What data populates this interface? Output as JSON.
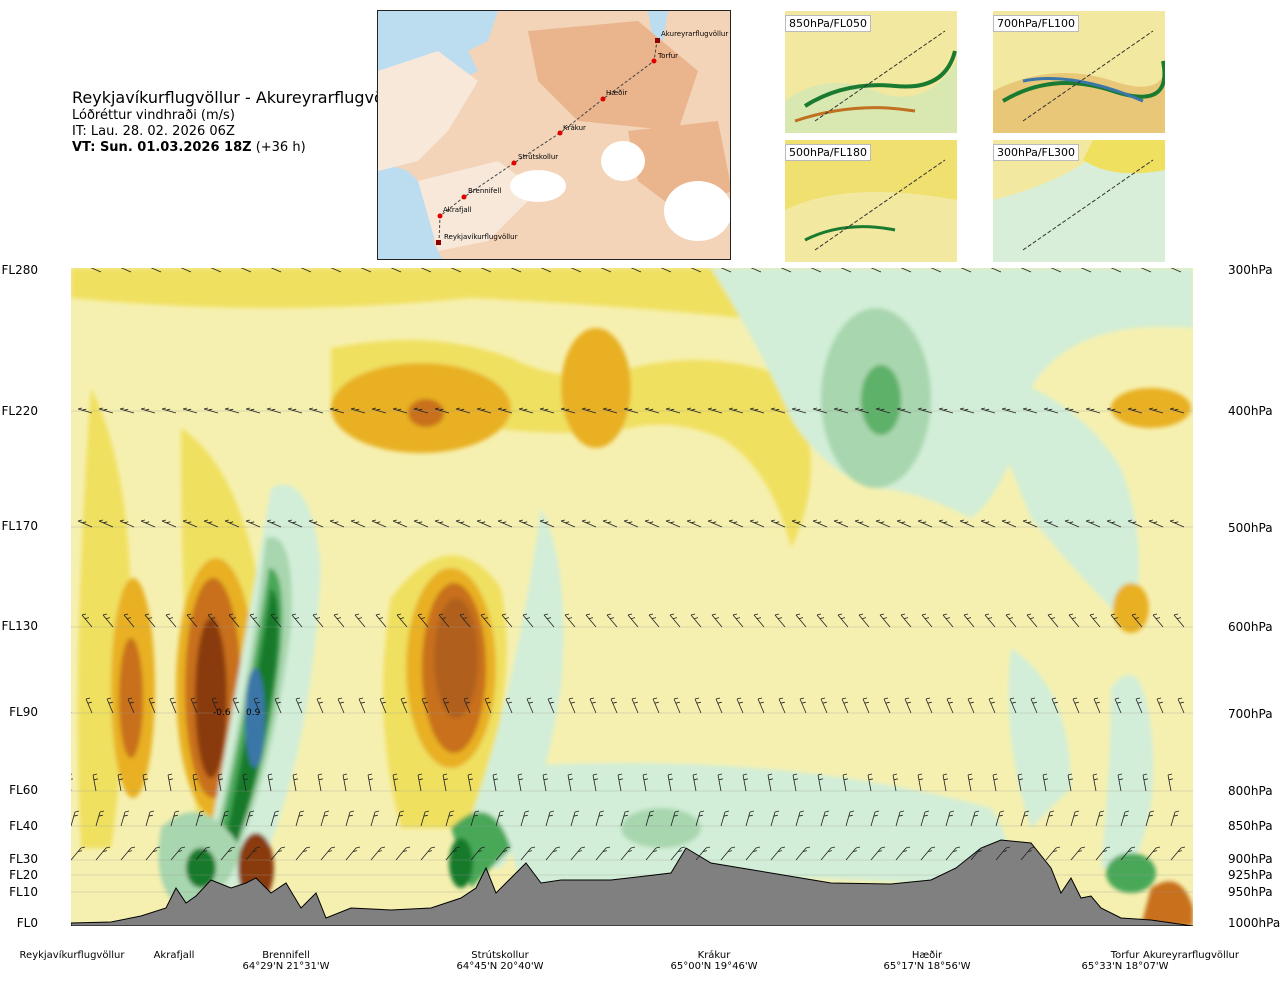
{
  "header": {
    "route": "Reykjavíkurflugvöllur - Akureyrarflugvöllur",
    "variable": "Lóðréttur vindhraði (m/s)",
    "issued": "IT: Lau. 28. 02. 2026 06Z",
    "valid_prefix": "VT: Sun. 01.03.2026 18Z",
    "valid_suffix": " (+36 h)"
  },
  "map": {
    "places": [
      "Akureyrarflugvöllur",
      "Torfur",
      "Hæðir",
      "Krákur",
      "Strútskollur",
      "Brennifell",
      "Akrafjall",
      "Reykjavíkurflugvöllur"
    ]
  },
  "minimaps": [
    {
      "label": "850hPa/FL050"
    },
    {
      "label": "700hPa/FL100"
    },
    {
      "label": "500hPa/FL180"
    },
    {
      "label": "300hPa/FL300"
    }
  ],
  "levels_left": [
    "FL280",
    "FL220",
    "FL170",
    "FL130",
    "FL90",
    "FL60",
    "FL40",
    "FL30",
    "FL20",
    "FL10",
    "FL0"
  ],
  "levels_right": [
    "300hPa",
    "400hPa",
    "500hPa",
    "600hPa",
    "700hPa",
    "800hPa",
    "850hPa",
    "900hPa",
    "925hPa",
    "950hPa",
    "1000hPa"
  ],
  "contour_labels": [
    "-0.6",
    "0.9"
  ],
  "waypoints": [
    {
      "name": "Reykjavíkurflugvöllur",
      "coord": ""
    },
    {
      "name": "Akrafjall",
      "coord": ""
    },
    {
      "name": "Brennifell",
      "coord": "64°29'N 21°31'W"
    },
    {
      "name": "Strútskollur",
      "coord": "64°45'N 20°40'W"
    },
    {
      "name": "Krákur",
      "coord": "65°00'N 19°46'W"
    },
    {
      "name": "Hæðir",
      "coord": "65°17'N 18°56'W"
    },
    {
      "name": "Torfur",
      "coord": "65°33'N 18°07'W"
    },
    {
      "name": "Akureyrarflugvöllur",
      "coord": ""
    }
  ],
  "colors": {
    "strong_up": "#8a3a10",
    "up2": "#c8701a",
    "up1": "#e8b020",
    "weak_up": "#f0e060",
    "neutral": "#f6f0b0",
    "weak_down": "#d2eed8",
    "down1": "#a8d6ae",
    "down2": "#4aa858",
    "down3": "#137a2a",
    "strong_down": "#3a76a8",
    "terrain": "#808080"
  }
}
